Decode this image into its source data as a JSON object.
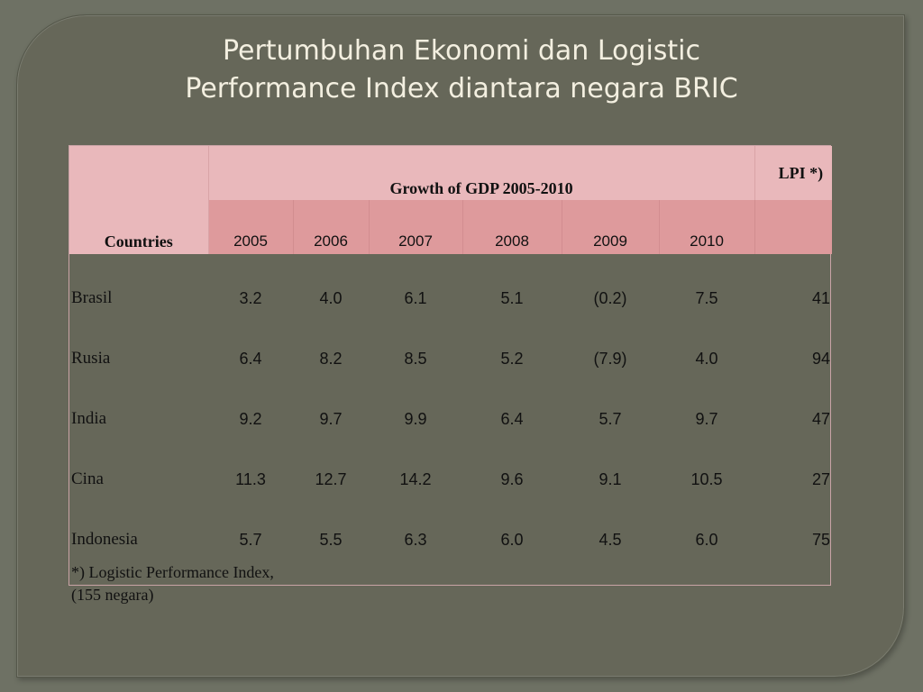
{
  "slide": {
    "title_line1": "Pertumbuhan Ekonomi dan Logistic",
    "title_line2": "Performance Index diantara negara BRIC"
  },
  "table": {
    "countries_header": "Countries",
    "growth_header": "Growth of GDP  2005-2010",
    "lpi_header": "LPI *)",
    "years": [
      "2005",
      "2006",
      "2007",
      "2008",
      "2009",
      "2010"
    ],
    "rows": [
      {
        "country": "Brasil",
        "values": [
          "3.2",
          "4.0",
          "6.1",
          "5.1",
          "(0.2)",
          "7.5"
        ],
        "lpi": "41"
      },
      {
        "country": "Rusia",
        "values": [
          "6.4",
          "8.2",
          "8.5",
          "5.2",
          "(7.9)",
          "4.0"
        ],
        "lpi": "94"
      },
      {
        "country": "India",
        "values": [
          "9.2",
          "9.7",
          "9.9",
          "6.4",
          "5.7",
          "9.7"
        ],
        "lpi": "47"
      },
      {
        "country": "Cina",
        "values": [
          "11.3",
          "12.7",
          "14.2",
          "9.6",
          "9.1",
          "10.5"
        ],
        "lpi": "27"
      },
      {
        "country": "Indonesia",
        "values": [
          "5.7",
          "5.5",
          "6.3",
          "6.0",
          "4.5",
          "6.0"
        ],
        "lpi": "75"
      }
    ],
    "note_line1": "*) Logistic Performance Index,",
    "note_line2": "(155 negara)"
  },
  "colors": {
    "background": "#6e7164",
    "frame": "#666759",
    "title_text": "#f3efe0",
    "header_light": "#e9b8bb",
    "header_dark": "#de9a9c"
  }
}
